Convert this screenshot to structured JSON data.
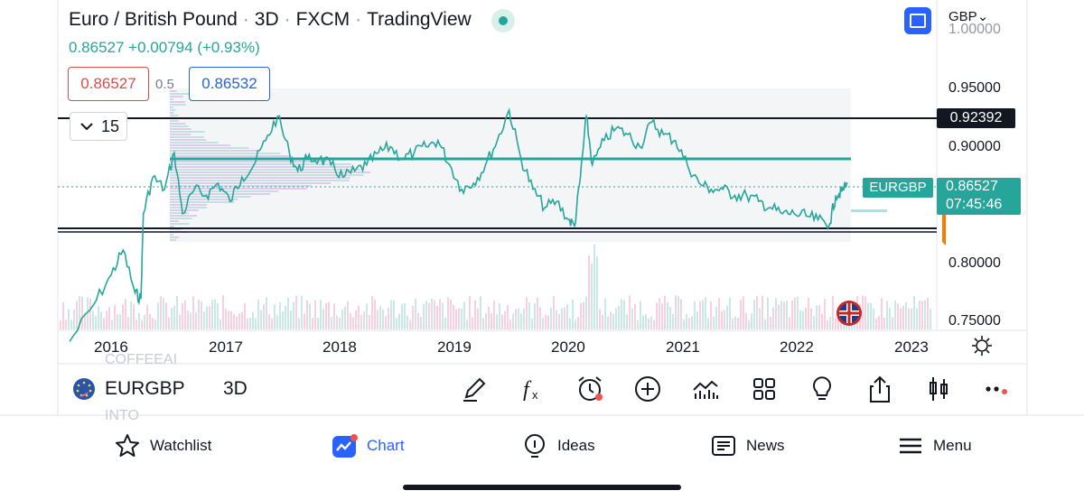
{
  "header": {
    "instrument": "Euro / British Pound",
    "interval": "3D",
    "exchange": "FXCM",
    "platform": "TradingView",
    "separator": "·",
    "price_line": "0.86527 +0.00794 (+0.93%)"
  },
  "quote": {
    "sell": "0.86527",
    "buy": "0.86532",
    "spread": "0.5",
    "interval_value": "15"
  },
  "currency": "GBP",
  "price_axis": {
    "labels": [
      "1.00000",
      "0.95000",
      "0.90000",
      "0.80000",
      "0.75000"
    ]
  },
  "time_axis": {
    "labels": [
      "2016",
      "2017",
      "2018",
      "2019",
      "2020",
      "2021",
      "2022",
      "2023"
    ]
  },
  "tags": {
    "resistance": "0.92392",
    "symbol": "EURGBP",
    "last_price": "0.86527",
    "countdown": "07:45:46"
  },
  "toolbar": {
    "symbol": "EURGBP",
    "interval": "3D",
    "ghost_top": "COFFEEAI",
    "ghost_bottom": "INTO",
    "tools": [
      "draw-pen-icon",
      "function-icon",
      "alarm-icon",
      "plus-circle-icon",
      "indicators-icon",
      "grid-icon",
      "lightbulb-icon",
      "share-icon",
      "candles-icon",
      "more-icon"
    ]
  },
  "nav": {
    "watchlist": "Watchlist",
    "chart": "Chart",
    "ideas": "Ideas",
    "news": "News",
    "menu": "Menu"
  },
  "colors": {
    "up": "#26a69a",
    "down": "#ef5350",
    "accent": "#2962ff",
    "level_line": "#26a69a",
    "support_resistance": "#131722"
  },
  "chart_data": {
    "type": "line",
    "title": "Euro / British Pound",
    "ylim": [
      0.745,
      1.005
    ],
    "xlim": [
      2015.8,
      2023.2
    ],
    "series": [
      {
        "name": "EURGBP",
        "x": [
          2015.9,
          2016.1,
          2016.25,
          2016.35,
          2016.45,
          2016.5,
          2016.52,
          2016.6,
          2016.7,
          2016.78,
          2016.85,
          2016.95,
          2017.05,
          2017.15,
          2017.25,
          2017.35,
          2017.45,
          2017.55,
          2017.65,
          2017.75,
          2017.82,
          2017.9,
          2018.0,
          2018.1,
          2018.2,
          2018.3,
          2018.4,
          2018.5,
          2018.6,
          2018.7,
          2018.8,
          2018.9,
          2019.0,
          2019.1,
          2019.2,
          2019.3,
          2019.4,
          2019.5,
          2019.6,
          2019.7,
          2019.8,
          2019.9,
          2020.0,
          2020.1,
          2020.15,
          2020.2,
          2020.25,
          2020.3,
          2020.4,
          2020.5,
          2020.6,
          2020.7,
          2020.8,
          2020.9,
          2021.0,
          2021.1,
          2021.2,
          2021.3,
          2021.4,
          2021.5,
          2021.6,
          2021.7,
          2021.8,
          2021.9,
          2022.0,
          2022.1,
          2022.2,
          2022.3,
          2022.35,
          2022.4,
          2022.45
        ],
        "y": [
          0.735,
          0.765,
          0.79,
          0.81,
          0.775,
          0.77,
          0.84,
          0.87,
          0.86,
          0.89,
          0.84,
          0.86,
          0.855,
          0.865,
          0.85,
          0.87,
          0.88,
          0.9,
          0.92,
          0.89,
          0.875,
          0.885,
          0.885,
          0.88,
          0.87,
          0.875,
          0.88,
          0.89,
          0.895,
          0.885,
          0.89,
          0.895,
          0.9,
          0.88,
          0.86,
          0.865,
          0.88,
          0.9,
          0.925,
          0.885,
          0.86,
          0.845,
          0.85,
          0.835,
          0.83,
          0.87,
          0.92,
          0.88,
          0.9,
          0.91,
          0.905,
          0.895,
          0.915,
          0.905,
          0.9,
          0.88,
          0.865,
          0.86,
          0.86,
          0.855,
          0.855,
          0.85,
          0.845,
          0.84,
          0.84,
          0.838,
          0.835,
          0.832,
          0.855,
          0.858,
          0.865
        ]
      }
    ],
    "horizontal_levels": [
      0.92392,
      0.89,
      0.83,
      0.828
    ],
    "last_price": 0.86527
  }
}
